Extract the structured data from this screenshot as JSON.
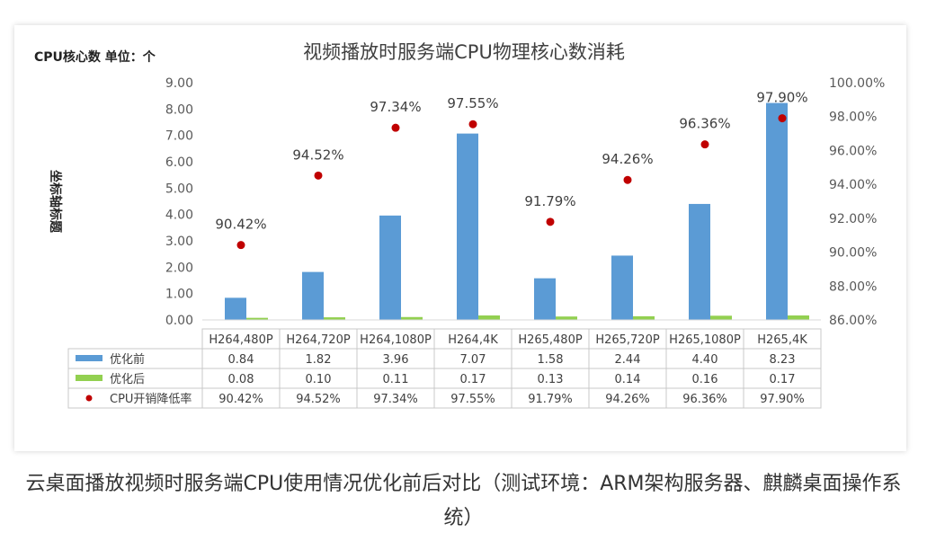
{
  "chart_data": {
    "type": "bar",
    "title": "视频播放时服务端CPU物理核心数消耗",
    "y_unit_label": "CPU核心数 单位：个",
    "ylabel": "坐标轴标题",
    "categories": [
      "H264,480P",
      "H264,720P",
      "H264,1080P",
      "H264,4K",
      "H265,480P",
      "H265,720P",
      "H265,1080P",
      "H265,4K"
    ],
    "ylim": [
      0,
      9
    ],
    "y_ticks": [
      "0.00",
      "1.00",
      "2.00",
      "3.00",
      "4.00",
      "5.00",
      "6.00",
      "7.00",
      "8.00",
      "9.00"
    ],
    "y2lim": [
      86,
      100
    ],
    "y2_ticks": [
      "86.00%",
      "88.00%",
      "90.00%",
      "92.00%",
      "94.00%",
      "96.00%",
      "98.00%",
      "100.00%"
    ],
    "series": [
      {
        "name": "优化前",
        "type": "bar",
        "color": "#5b9bd5",
        "values": [
          0.84,
          1.82,
          3.96,
          7.07,
          1.58,
          2.44,
          4.4,
          8.23
        ],
        "labels": [
          "0.84",
          "1.82",
          "3.96",
          "7.07",
          "1.58",
          "2.44",
          "4.40",
          "8.23"
        ]
      },
      {
        "name": "优化后",
        "type": "bar",
        "color": "#92d050",
        "values": [
          0.08,
          0.1,
          0.11,
          0.17,
          0.13,
          0.14,
          0.16,
          0.17
        ],
        "labels": [
          "0.08",
          "0.10",
          "0.11",
          "0.17",
          "0.13",
          "0.14",
          "0.16",
          "0.17"
        ]
      },
      {
        "name": "CPU开销降低率",
        "type": "scatter",
        "axis": "right",
        "color": "#c00000",
        "values": [
          90.42,
          94.52,
          97.34,
          97.55,
          91.79,
          94.26,
          96.36,
          97.9
        ],
        "labels": [
          "90.42%",
          "94.52%",
          "97.34%",
          "97.55%",
          "91.79%",
          "94.26%",
          "96.36%",
          "97.90%"
        ]
      }
    ],
    "grid": false,
    "legend": "data-table"
  },
  "caption": "云桌面播放视频时服务端CPU使用情况优化前后对比（测试环境：ARM架构服务器、麒麟桌面操作系统）"
}
